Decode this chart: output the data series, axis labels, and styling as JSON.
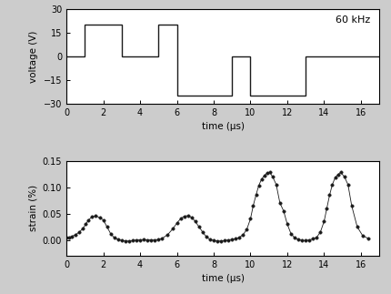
{
  "voltage_signal": {
    "x": [
      0,
      1,
      1,
      3,
      3,
      5,
      5,
      6,
      6,
      9,
      9,
      10,
      10,
      13,
      13,
      14,
      14,
      17
    ],
    "y": [
      0,
      0,
      20,
      20,
      0,
      0,
      20,
      20,
      -25,
      -25,
      0,
      0,
      -25,
      -25,
      0,
      0,
      0,
      0
    ],
    "annotation": "60 kHz",
    "ylabel": "voltage (V)",
    "xlabel": "time (μs)",
    "ylim": [
      -30,
      30
    ],
    "yticks": [
      -30,
      -15,
      0,
      15,
      30
    ],
    "xlim": [
      0,
      17
    ],
    "xticks": [
      0,
      2,
      4,
      6,
      8,
      10,
      12,
      14,
      16
    ]
  },
  "strain_signal": {
    "x": [
      0.0,
      0.15,
      0.3,
      0.5,
      0.7,
      0.9,
      1.05,
      1.2,
      1.4,
      1.6,
      1.8,
      2.0,
      2.2,
      2.4,
      2.6,
      2.8,
      3.0,
      3.2,
      3.4,
      3.6,
      3.8,
      4.0,
      4.2,
      4.4,
      4.6,
      4.8,
      5.0,
      5.2,
      5.5,
      5.8,
      6.0,
      6.2,
      6.4,
      6.6,
      6.8,
      7.0,
      7.2,
      7.4,
      7.6,
      7.8,
      8.0,
      8.2,
      8.4,
      8.6,
      8.8,
      9.0,
      9.2,
      9.4,
      9.6,
      9.8,
      10.0,
      10.15,
      10.3,
      10.45,
      10.6,
      10.75,
      10.9,
      11.05,
      11.2,
      11.4,
      11.6,
      11.8,
      12.0,
      12.2,
      12.4,
      12.6,
      12.8,
      13.0,
      13.2,
      13.4,
      13.6,
      13.8,
      14.0,
      14.15,
      14.3,
      14.45,
      14.6,
      14.75,
      14.9,
      15.1,
      15.3,
      15.5,
      15.8,
      16.1,
      16.4
    ],
    "y": [
      0.005,
      0.005,
      0.007,
      0.01,
      0.015,
      0.022,
      0.03,
      0.038,
      0.044,
      0.046,
      0.042,
      0.038,
      0.025,
      0.012,
      0.004,
      0.001,
      -0.001,
      -0.002,
      -0.002,
      -0.001,
      0.0,
      0.0,
      0.001,
      0.0,
      0.0,
      0.0,
      0.001,
      0.003,
      0.01,
      0.022,
      0.032,
      0.04,
      0.045,
      0.046,
      0.043,
      0.035,
      0.025,
      0.015,
      0.006,
      0.001,
      -0.001,
      -0.002,
      -0.002,
      -0.001,
      0.0,
      0.001,
      0.002,
      0.005,
      0.01,
      0.02,
      0.04,
      0.065,
      0.085,
      0.103,
      0.115,
      0.122,
      0.127,
      0.128,
      0.12,
      0.105,
      0.07,
      0.055,
      0.03,
      0.012,
      0.004,
      0.001,
      -0.001,
      -0.001,
      0.0,
      0.002,
      0.005,
      0.015,
      0.035,
      0.06,
      0.085,
      0.105,
      0.118,
      0.124,
      0.128,
      0.12,
      0.105,
      0.065,
      0.025,
      0.008,
      0.003
    ],
    "ylabel": "strain (%)",
    "xlabel": "time (μs)",
    "ylim": [
      -0.03,
      0.15
    ],
    "yticks": [
      0.0,
      0.05,
      0.1,
      0.15
    ],
    "xlim": [
      0,
      17
    ],
    "xticks": [
      0,
      2,
      4,
      6,
      8,
      10,
      12,
      14,
      16
    ]
  },
  "line_color": "#1a1a1a",
  "dot_color": "#1a1a1a",
  "bg_color": "#ffffff",
  "figure_bg": "#cccccc"
}
